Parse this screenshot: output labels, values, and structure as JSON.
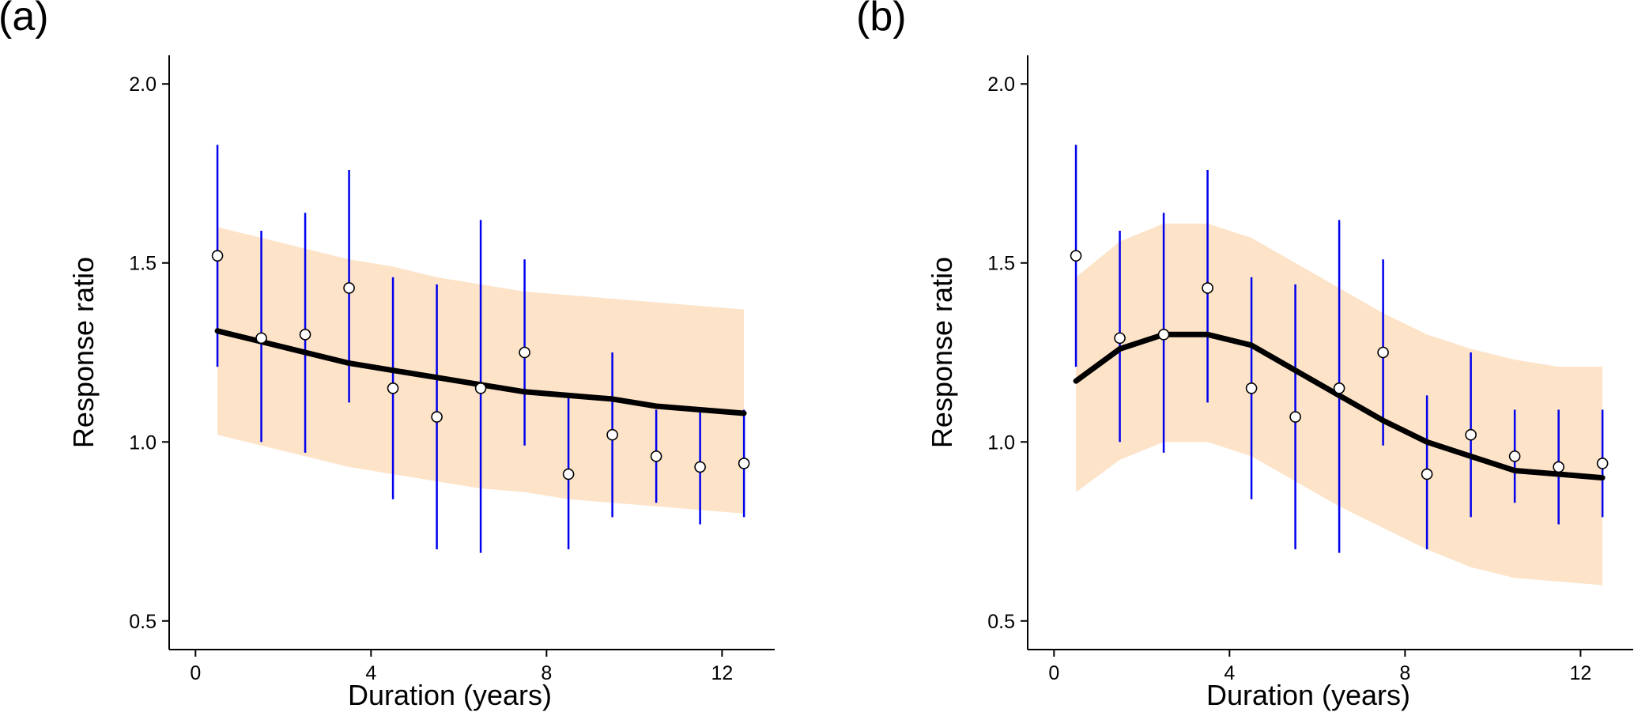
{
  "chart_data": [
    {
      "type": "scatter",
      "panel_label": "(a)",
      "xlabel": "Duration (years)",
      "ylabel": "Response ratio",
      "xlim": [
        -0.6,
        13.2
      ],
      "ylim": [
        0.42,
        2.08
      ],
      "xticks": [
        0,
        4,
        8,
        12
      ],
      "yticks": [
        0.5,
        1.0,
        1.5,
        2.0
      ],
      "ytick_labels": [
        "0.5",
        "1.0",
        "1.5",
        "2.0"
      ],
      "grid": false,
      "colors": {
        "band": "#fde3c8",
        "fit": "#000000",
        "error_bar": "#0000ee",
        "point": "#000000"
      },
      "points": [
        {
          "x": 0.5,
          "y": 1.52,
          "lo": 1.21,
          "hi": 1.83
        },
        {
          "x": 1.5,
          "y": 1.29,
          "lo": 1.0,
          "hi": 1.59
        },
        {
          "x": 2.5,
          "y": 1.3,
          "lo": 0.97,
          "hi": 1.64
        },
        {
          "x": 3.5,
          "y": 1.43,
          "lo": 1.11,
          "hi": 1.76
        },
        {
          "x": 4.5,
          "y": 1.15,
          "lo": 0.84,
          "hi": 1.46
        },
        {
          "x": 5.5,
          "y": 1.07,
          "lo": 0.7,
          "hi": 1.44
        },
        {
          "x": 6.5,
          "y": 1.15,
          "lo": 0.69,
          "hi": 1.62
        },
        {
          "x": 7.5,
          "y": 1.25,
          "lo": 0.99,
          "hi": 1.51
        },
        {
          "x": 8.5,
          "y": 0.91,
          "lo": 0.7,
          "hi": 1.13
        },
        {
          "x": 9.5,
          "y": 1.02,
          "lo": 0.79,
          "hi": 1.25
        },
        {
          "x": 10.5,
          "y": 0.96,
          "lo": 0.83,
          "hi": 1.09
        },
        {
          "x": 11.5,
          "y": 0.93,
          "lo": 0.77,
          "hi": 1.09
        },
        {
          "x": 12.5,
          "y": 0.94,
          "lo": 0.79,
          "hi": 1.09
        }
      ],
      "fit": {
        "x": [
          0.5,
          1.5,
          2.5,
          3.5,
          4.5,
          5.5,
          6.5,
          7.5,
          8.5,
          9.5,
          10.5,
          11.5,
          12.5
        ],
        "y": [
          1.31,
          1.28,
          1.25,
          1.22,
          1.2,
          1.18,
          1.16,
          1.14,
          1.13,
          1.12,
          1.1,
          1.09,
          1.08
        ],
        "lower": [
          1.02,
          0.99,
          0.96,
          0.93,
          0.91,
          0.89,
          0.87,
          0.86,
          0.84,
          0.83,
          0.82,
          0.81,
          0.8
        ],
        "upper": [
          1.6,
          1.57,
          1.54,
          1.51,
          1.49,
          1.46,
          1.44,
          1.42,
          1.41,
          1.4,
          1.39,
          1.38,
          1.37
        ]
      }
    },
    {
      "type": "scatter",
      "panel_label": "(b)",
      "xlabel": "Duration (years)",
      "ylabel": "Response ratio",
      "xlim": [
        -0.6,
        13.2
      ],
      "ylim": [
        0.42,
        2.08
      ],
      "xticks": [
        0,
        4,
        8,
        12
      ],
      "yticks": [
        0.5,
        1.0,
        1.5,
        2.0
      ],
      "ytick_labels": [
        "0.5",
        "1.0",
        "1.5",
        "2.0"
      ],
      "grid": false,
      "colors": {
        "band": "#fde3c8",
        "fit": "#000000",
        "error_bar": "#0000ee",
        "point": "#000000"
      },
      "points": [
        {
          "x": 0.5,
          "y": 1.52,
          "lo": 1.21,
          "hi": 1.83
        },
        {
          "x": 1.5,
          "y": 1.29,
          "lo": 1.0,
          "hi": 1.59
        },
        {
          "x": 2.5,
          "y": 1.3,
          "lo": 0.97,
          "hi": 1.64
        },
        {
          "x": 3.5,
          "y": 1.43,
          "lo": 1.11,
          "hi": 1.76
        },
        {
          "x": 4.5,
          "y": 1.15,
          "lo": 0.84,
          "hi": 1.46
        },
        {
          "x": 5.5,
          "y": 1.07,
          "lo": 0.7,
          "hi": 1.44
        },
        {
          "x": 6.5,
          "y": 1.15,
          "lo": 0.69,
          "hi": 1.62
        },
        {
          "x": 7.5,
          "y": 1.25,
          "lo": 0.99,
          "hi": 1.51
        },
        {
          "x": 8.5,
          "y": 0.91,
          "lo": 0.7,
          "hi": 1.13
        },
        {
          "x": 9.5,
          "y": 1.02,
          "lo": 0.79,
          "hi": 1.25
        },
        {
          "x": 10.5,
          "y": 0.96,
          "lo": 0.83,
          "hi": 1.09
        },
        {
          "x": 11.5,
          "y": 0.93,
          "lo": 0.77,
          "hi": 1.09
        },
        {
          "x": 12.5,
          "y": 0.94,
          "lo": 0.79,
          "hi": 1.09
        }
      ],
      "fit": {
        "x": [
          0.5,
          1.5,
          2.5,
          3.5,
          4.5,
          5.5,
          6.5,
          7.5,
          8.5,
          9.5,
          10.5,
          11.5,
          12.5
        ],
        "y": [
          1.17,
          1.26,
          1.3,
          1.3,
          1.27,
          1.2,
          1.13,
          1.06,
          1.0,
          0.96,
          0.92,
          0.91,
          0.9
        ],
        "lower": [
          0.86,
          0.95,
          1.0,
          1.0,
          0.96,
          0.89,
          0.82,
          0.76,
          0.7,
          0.65,
          0.62,
          0.61,
          0.6
        ],
        "upper": [
          1.46,
          1.56,
          1.61,
          1.61,
          1.57,
          1.5,
          1.43,
          1.36,
          1.3,
          1.26,
          1.23,
          1.21,
          1.21
        ]
      }
    }
  ]
}
